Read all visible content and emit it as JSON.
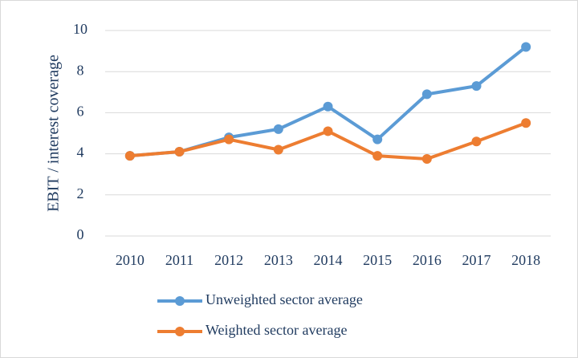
{
  "chart_data": {
    "type": "line",
    "y_label": "EBIT / interest coverage",
    "categories": [
      "2010",
      "2011",
      "2012",
      "2013",
      "2014",
      "2015",
      "2016",
      "2017",
      "2018"
    ],
    "series": [
      {
        "name": "Unweighted sector average",
        "color": "#5b9bd5",
        "values": [
          3.9,
          4.1,
          4.8,
          5.2,
          6.3,
          4.7,
          6.9,
          7.3,
          9.2
        ]
      },
      {
        "name": "Weighted sector average",
        "color": "#ed7d31",
        "values": [
          3.9,
          4.1,
          4.7,
          4.2,
          5.1,
          3.9,
          3.75,
          4.6,
          5.5
        ]
      }
    ],
    "ylim": [
      0,
      10
    ],
    "yticks": [
      0,
      2,
      4,
      6,
      8,
      10
    ],
    "grid": true
  }
}
